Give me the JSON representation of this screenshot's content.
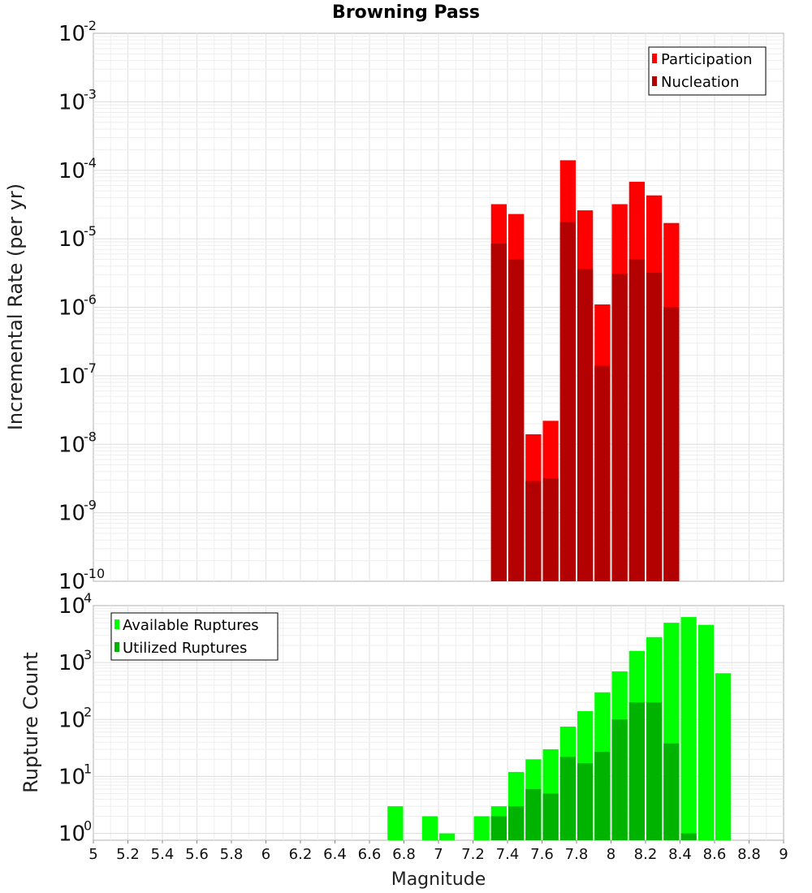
{
  "colors": {
    "participation": "#ff0000",
    "nucleation": "#b30000",
    "available": "#00ff00",
    "utilized": "#00b300"
  },
  "chart_data": [
    {
      "type": "bar",
      "title": "Browning Pass",
      "xlabel": "",
      "ylabel": "Incremental Rate (per yr)",
      "yscale": "log",
      "ylim_exp": [
        -10,
        -2
      ],
      "ytick_exponents": [
        "-10",
        "-9",
        "-8",
        "-7",
        "-6",
        "-5",
        "-4",
        "-3",
        "-2"
      ],
      "xlim": [
        5,
        9
      ],
      "legend_position": "top-right",
      "series": [
        {
          "name": "Participation",
          "color": "#ff0000",
          "x": [
            7.35,
            7.45,
            7.55,
            7.65,
            7.75,
            7.85,
            7.95,
            8.05,
            8.15,
            8.25,
            8.35
          ],
          "values": [
            3.2e-05,
            2.3e-05,
            1.4e-08,
            2.2e-08,
            0.00014,
            2.6e-05,
            1.1e-06,
            3.2e-05,
            6.8e-05,
            4.3e-05,
            1.7e-05
          ]
        },
        {
          "name": "Nucleation",
          "color": "#b30000",
          "x": [
            7.35,
            7.45,
            7.55,
            7.65,
            7.75,
            7.85,
            7.95,
            8.05,
            8.15,
            8.25,
            8.35
          ],
          "values": [
            8.5e-06,
            5e-06,
            2.9e-09,
            3.2e-09,
            1.75e-05,
            3.6e-06,
            1.4e-07,
            3.1e-06,
            5e-06,
            3.2e-06,
            1e-06
          ]
        }
      ]
    },
    {
      "type": "bar",
      "title": "",
      "xlabel": "Magnitude",
      "ylabel": "Rupture Count",
      "yscale": "log",
      "ylim_exp": [
        -0.12,
        4
      ],
      "ytick_exponents": [
        "0",
        "1",
        "2",
        "3",
        "4"
      ],
      "xlim": [
        5,
        9
      ],
      "xticks": [
        "5",
        "5.2",
        "5.4",
        "5.6",
        "5.8",
        "6",
        "6.2",
        "6.4",
        "6.6",
        "6.8",
        "7",
        "7.2",
        "7.4",
        "7.6",
        "7.8",
        "8",
        "8.2",
        "8.4",
        "8.6",
        "8.8",
        "9"
      ],
      "legend_position": "top-left",
      "series": [
        {
          "name": "Available Ruptures",
          "color": "#00ff00",
          "x": [
            6.75,
            6.95,
            7.05,
            7.25,
            7.35,
            7.45,
            7.55,
            7.65,
            7.75,
            7.85,
            7.95,
            8.05,
            8.15,
            8.25,
            8.35,
            8.45,
            8.55,
            8.65
          ],
          "values": [
            3,
            2,
            1,
            2,
            3,
            12,
            20,
            30,
            75,
            140,
            300,
            700,
            1600,
            2800,
            5000,
            6300,
            4600,
            650
          ]
        },
        {
          "name": "Utilized Ruptures",
          "color": "#00b300",
          "x": [
            7.35,
            7.45,
            7.55,
            7.65,
            7.75,
            7.85,
            7.95,
            8.05,
            8.15,
            8.25,
            8.35,
            8.45
          ],
          "values": [
            2,
            3,
            6,
            5,
            22,
            17,
            27,
            100,
            200,
            200,
            38,
            1
          ]
        }
      ]
    }
  ]
}
